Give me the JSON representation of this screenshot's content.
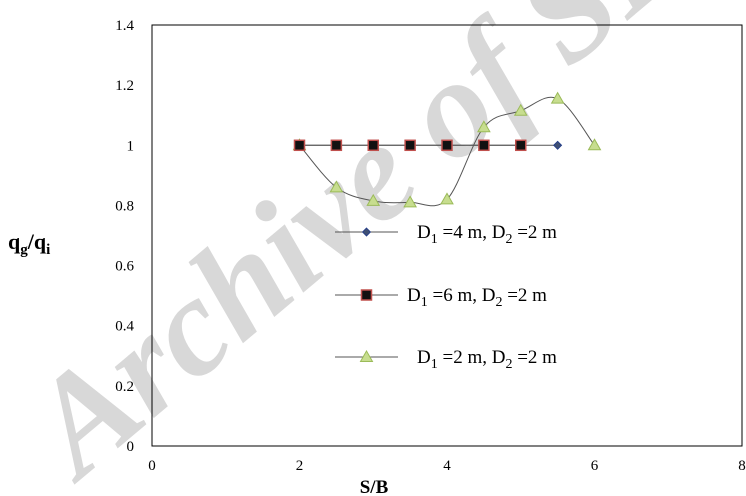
{
  "chart_data": {
    "type": "scatter",
    "xlabel": "S/B",
    "ylabel": {
      "main": "q",
      "sub1": "g",
      "sep": "/q",
      "sub2": "i"
    },
    "xlim": [
      0,
      8
    ],
    "ylim": [
      0,
      1.4
    ],
    "x_ticks": [
      "0",
      "2",
      "4",
      "6",
      "8"
    ],
    "y_ticks": [
      "0",
      "0.2",
      "0.4",
      "0.6",
      "0.8",
      "1",
      "1.2",
      "1.4"
    ],
    "grid": false,
    "legend_position": "inside-lower-center",
    "series": [
      {
        "legend": {
          "a": "D",
          "a_sub": "1",
          "b": " =4 m, D",
          "b_sub": "2",
          "c": " =2 m"
        },
        "marker": "diamond",
        "color": "#3f4f73",
        "line": "straight",
        "x": [
          2,
          2.5,
          3,
          3.5,
          4,
          4.5,
          5,
          5.5
        ],
        "y": [
          1,
          1,
          1,
          1,
          1,
          1,
          1,
          1
        ]
      },
      {
        "legend": {
          "a": "D",
          "a_sub": "1",
          "b": " =6 m, D",
          "b_sub": "2",
          "c": " =2 m"
        },
        "marker": "square",
        "color": "#111111",
        "edge": "#c0504d",
        "line": "straight",
        "x": [
          2,
          2.5,
          3,
          3.5,
          4,
          4.5,
          5
        ],
        "y": [
          1,
          1,
          1,
          1,
          1,
          1,
          1
        ]
      },
      {
        "legend": {
          "a": "D",
          "a_sub": "1",
          "b": " =2 m, D",
          "b_sub": "2",
          "c": " =2 m"
        },
        "marker": "triangle",
        "color": "#111111",
        "edge": "#9bbb59",
        "line": "smooth",
        "x": [
          2,
          2.5,
          3,
          3.5,
          4,
          4.5,
          5,
          5.5,
          6
        ],
        "y": [
          1,
          0.86,
          0.815,
          0.81,
          0.82,
          1.06,
          1.115,
          1.155,
          1
        ]
      }
    ]
  },
  "watermark": {
    "text": "Archive of SID",
    "color": "#d8d8d8"
  }
}
